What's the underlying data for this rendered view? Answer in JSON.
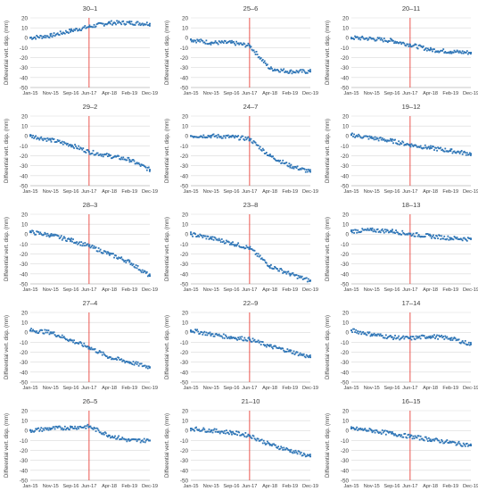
{
  "figure": {
    "ylabel": "Differential vert. disp. (mm)",
    "yticks": [
      20,
      10,
      0,
      -10,
      -20,
      -30,
      -40,
      -50
    ],
    "xticks": [
      "Jan-15",
      "Nov-15",
      "Sep-16",
      "Jun-17",
      "Apr-18",
      "Feb-19",
      "Dec-19"
    ],
    "colors": {
      "points": "#2e75b6",
      "event_line": "#e8433c",
      "grid": "#d9d9d9",
      "axis_text": "#404040"
    }
  },
  "chart_data": [
    {
      "type": "scatter",
      "title": "30–1",
      "xlabel": "",
      "ylabel": "Differential vert. disp. (mm)",
      "ylim": [
        -50,
        20
      ],
      "x_range": [
        "Jan-15",
        "Dec-19"
      ],
      "event_line_x": "Jun-17",
      "grid": true,
      "series": [
        {
          "x": [
            "Jan-15",
            "Nov-15",
            "Sep-16",
            "Jun-17",
            "Apr-18",
            "Feb-19",
            "Dec-19"
          ],
          "y": [
            0,
            2,
            7,
            11,
            15,
            15,
            14
          ]
        }
      ]
    },
    {
      "type": "scatter",
      "title": "25–6",
      "xlabel": "",
      "ylabel": "Differential vert. disp. (mm)",
      "ylim": [
        -50,
        20
      ],
      "x_range": [
        "Jan-15",
        "Dec-19"
      ],
      "event_line_x": "Jun-17",
      "grid": true,
      "series": [
        {
          "x": [
            "Jan-15",
            "Nov-15",
            "Sep-16",
            "Jun-17",
            "Apr-18",
            "Feb-19",
            "Dec-19"
          ],
          "y": [
            -2,
            -5,
            -5,
            -8,
            -31,
            -34,
            -34
          ]
        }
      ]
    },
    {
      "type": "scatter",
      "title": "20–11",
      "xlabel": "",
      "ylabel": "Differential vert. disp. (mm)",
      "ylim": [
        -50,
        20
      ],
      "x_range": [
        "Jan-15",
        "Dec-19"
      ],
      "event_line_x": "Jun-17",
      "grid": true,
      "series": [
        {
          "x": [
            "Jan-15",
            "Nov-15",
            "Sep-16",
            "Jun-17",
            "Apr-18",
            "Feb-19",
            "Dec-19"
          ],
          "y": [
            0,
            -1,
            -3,
            -7,
            -12,
            -14,
            -15
          ]
        }
      ]
    },
    {
      "type": "scatter",
      "title": "29–2",
      "xlabel": "",
      "ylabel": "Differential vert. disp. (mm)",
      "ylim": [
        -50,
        20
      ],
      "x_range": [
        "Jan-15",
        "Dec-19"
      ],
      "event_line_x": "Jun-17",
      "grid": true,
      "series": [
        {
          "x": [
            "Jan-15",
            "Nov-15",
            "Sep-16",
            "Jun-17",
            "Apr-18",
            "Feb-19",
            "Dec-19"
          ],
          "y": [
            0,
            -4,
            -9,
            -16,
            -20,
            -24,
            -34
          ]
        }
      ]
    },
    {
      "type": "scatter",
      "title": "24–7",
      "xlabel": "",
      "ylabel": "Differential vert. disp. (mm)",
      "ylim": [
        -50,
        20
      ],
      "x_range": [
        "Jan-15",
        "Dec-19"
      ],
      "event_line_x": "Jun-17",
      "grid": true,
      "series": [
        {
          "x": [
            "Jan-15",
            "Nov-15",
            "Sep-16",
            "Jun-17",
            "Apr-18",
            "Feb-19",
            "Dec-19"
          ],
          "y": [
            0,
            0,
            -1,
            -3,
            -20,
            -30,
            -36
          ]
        }
      ]
    },
    {
      "type": "scatter",
      "title": "19–12",
      "xlabel": "",
      "ylabel": "Differential vert. disp. (mm)",
      "ylim": [
        -50,
        20
      ],
      "x_range": [
        "Jan-15",
        "Dec-19"
      ],
      "event_line_x": "Jun-17",
      "grid": true,
      "series": [
        {
          "x": [
            "Jan-15",
            "Nov-15",
            "Sep-16",
            "Jun-17",
            "Apr-18",
            "Feb-19",
            "Dec-19"
          ],
          "y": [
            1,
            -2,
            -5,
            -9,
            -12,
            -15,
            -18
          ]
        }
      ]
    },
    {
      "type": "scatter",
      "title": "28–3",
      "xlabel": "",
      "ylabel": "Differential vert. disp. (mm)",
      "ylim": [
        -50,
        20
      ],
      "x_range": [
        "Jan-15",
        "Dec-19"
      ],
      "event_line_x": "Jun-17",
      "grid": true,
      "series": [
        {
          "x": [
            "Jan-15",
            "Nov-15",
            "Sep-16",
            "Jun-17",
            "Apr-18",
            "Feb-19",
            "Dec-19"
          ],
          "y": [
            2,
            -1,
            -6,
            -12,
            -20,
            -28,
            -42
          ]
        }
      ]
    },
    {
      "type": "scatter",
      "title": "23–8",
      "xlabel": "",
      "ylabel": "Differential vert. disp. (mm)",
      "ylim": [
        -50,
        20
      ],
      "x_range": [
        "Jan-15",
        "Dec-19"
      ],
      "event_line_x": "Jun-17",
      "grid": true,
      "series": [
        {
          "x": [
            "Jan-15",
            "Nov-15",
            "Sep-16",
            "Jun-17",
            "Apr-18",
            "Feb-19",
            "Dec-19"
          ],
          "y": [
            0,
            -4,
            -9,
            -14,
            -32,
            -40,
            -47
          ]
        }
      ]
    },
    {
      "type": "scatter",
      "title": "18–13",
      "xlabel": "",
      "ylabel": "Differential vert. disp. (mm)",
      "ylim": [
        -50,
        20
      ],
      "x_range": [
        "Jan-15",
        "Dec-19"
      ],
      "event_line_x": "Jun-17",
      "grid": true,
      "series": [
        {
          "x": [
            "Jan-15",
            "Nov-15",
            "Sep-16",
            "Jun-17",
            "Apr-18",
            "Feb-19",
            "Dec-19"
          ],
          "y": [
            3,
            4,
            3,
            0,
            -2,
            -4,
            -5
          ]
        }
      ]
    },
    {
      "type": "scatter",
      "title": "27–4",
      "xlabel": "",
      "ylabel": "Differential vert. disp. (mm)",
      "ylim": [
        -50,
        20
      ],
      "x_range": [
        "Jan-15",
        "Dec-19"
      ],
      "event_line_x": "Jun-17",
      "grid": true,
      "series": [
        {
          "x": [
            "Jan-15",
            "Nov-15",
            "Sep-16",
            "Jun-17",
            "Apr-18",
            "Feb-19",
            "Dec-19"
          ],
          "y": [
            2,
            0,
            -8,
            -15,
            -25,
            -30,
            -35
          ]
        }
      ]
    },
    {
      "type": "scatter",
      "title": "22–9",
      "xlabel": "",
      "ylabel": "Differential vert. disp. (mm)",
      "ylim": [
        -50,
        20
      ],
      "x_range": [
        "Jan-15",
        "Dec-19"
      ],
      "event_line_x": "Jun-17",
      "grid": true,
      "series": [
        {
          "x": [
            "Jan-15",
            "Nov-15",
            "Sep-16",
            "Jun-17",
            "Apr-18",
            "Feb-19",
            "Dec-19"
          ],
          "y": [
            2,
            -2,
            -5,
            -7,
            -14,
            -19,
            -25
          ]
        }
      ]
    },
    {
      "type": "scatter",
      "title": "17–14",
      "xlabel": "",
      "ylabel": "Differential vert. disp. (mm)",
      "ylim": [
        -50,
        20
      ],
      "x_range": [
        "Jan-15",
        "Dec-19"
      ],
      "event_line_x": "Jun-17",
      "grid": true,
      "series": [
        {
          "x": [
            "Jan-15",
            "Nov-15",
            "Sep-16",
            "Jun-17",
            "Apr-18",
            "Feb-19",
            "Dec-19"
          ],
          "y": [
            2,
            -2,
            -5,
            -6,
            -4,
            -6,
            -12
          ]
        }
      ]
    },
    {
      "type": "scatter",
      "title": "26–5",
      "xlabel": "",
      "ylabel": "Differential vert. disp. (mm)",
      "ylim": [
        -50,
        20
      ],
      "x_range": [
        "Jan-15",
        "Dec-19"
      ],
      "event_line_x": "Jun-17",
      "grid": true,
      "series": [
        {
          "x": [
            "Jan-15",
            "Nov-15",
            "Sep-16",
            "Jun-17",
            "Apr-18",
            "Feb-19",
            "Dec-19"
          ],
          "y": [
            0,
            2,
            3,
            4,
            -5,
            -10,
            -10
          ]
        }
      ]
    },
    {
      "type": "scatter",
      "title": "21–10",
      "xlabel": "",
      "ylabel": "Differential vert. disp. (mm)",
      "ylim": [
        -50,
        20
      ],
      "x_range": [
        "Jan-15",
        "Dec-19"
      ],
      "event_line_x": "Jun-17",
      "grid": true,
      "series": [
        {
          "x": [
            "Jan-15",
            "Nov-15",
            "Sep-16",
            "Jun-17",
            "Apr-18",
            "Feb-19",
            "Dec-19"
          ],
          "y": [
            2,
            0,
            -2,
            -5,
            -14,
            -20,
            -26
          ]
        }
      ]
    },
    {
      "type": "scatter",
      "title": "16–15",
      "xlabel": "",
      "ylabel": "Differential vert. disp. (mm)",
      "ylim": [
        -50,
        20
      ],
      "x_range": [
        "Jan-15",
        "Dec-19"
      ],
      "event_line_x": "Jun-17",
      "grid": true,
      "series": [
        {
          "x": [
            "Jan-15",
            "Nov-15",
            "Sep-16",
            "Jun-17",
            "Apr-18",
            "Feb-19",
            "Dec-19"
          ],
          "y": [
            2,
            0,
            -3,
            -6,
            -9,
            -12,
            -15
          ]
        }
      ]
    }
  ]
}
